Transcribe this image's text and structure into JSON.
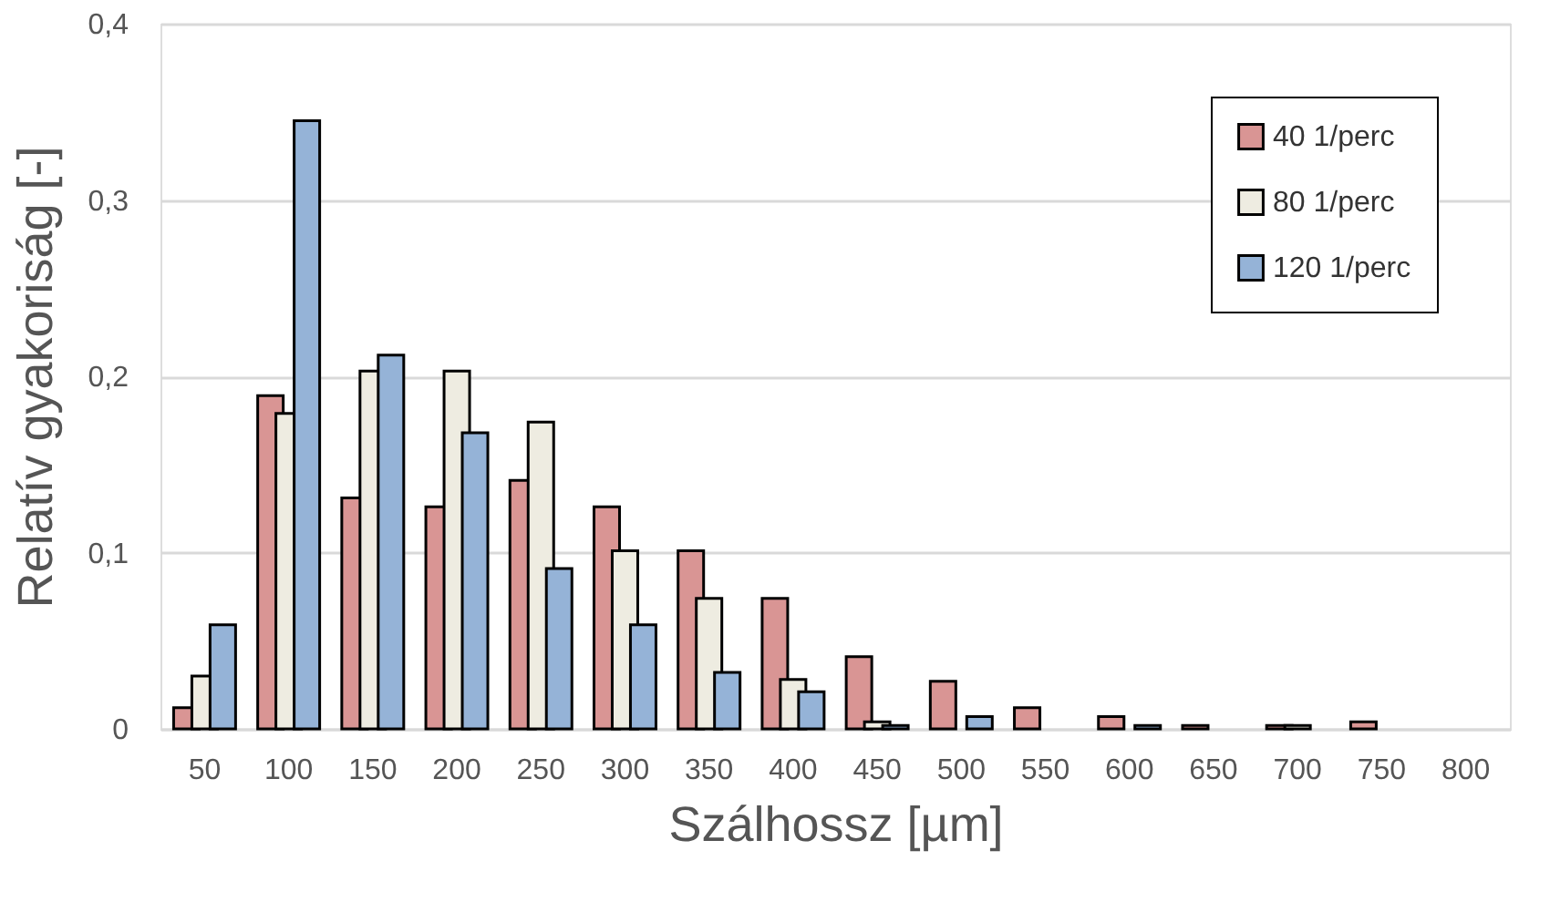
{
  "chart_data": {
    "type": "bar",
    "xlabel": "Szálhossz [µm]",
    "ylabel": "Relatív gyakoriság [-]",
    "categories": [
      "50",
      "100",
      "150",
      "200",
      "250",
      "300",
      "350",
      "400",
      "450",
      "500",
      "550",
      "600",
      "650",
      "700",
      "750",
      "800"
    ],
    "series": [
      {
        "name": "40 1/perc",
        "color": "#d99594",
        "values": [
          0.012,
          0.189,
          0.131,
          0.126,
          0.141,
          0.126,
          0.101,
          0.074,
          0.041,
          0.027,
          0.012,
          0.007,
          0.002,
          0.002,
          0.004,
          null
        ]
      },
      {
        "name": "80 1/perc",
        "color": "#eeece1",
        "values": [
          0.03,
          0.179,
          0.203,
          0.203,
          0.174,
          0.101,
          0.074,
          0.028,
          0.004,
          null,
          null,
          null,
          null,
          0.002,
          null,
          null
        ]
      },
      {
        "name": "120 1/perc",
        "color": "#95b3d7",
        "values": [
          0.059,
          0.345,
          0.212,
          0.168,
          0.091,
          0.059,
          0.032,
          0.021,
          0.002,
          0.007,
          null,
          0.002,
          null,
          null,
          null,
          null
        ]
      }
    ],
    "ylim": [
      0,
      0.4
    ],
    "yticks": [
      0,
      {
        "value": 0.1,
        "label": "0,1"
      },
      {
        "value": 0.2,
        "label": "0,2"
      },
      {
        "value": 0.3,
        "label": "0,3"
      },
      {
        "value": 0.4,
        "label": "0,4"
      }
    ],
    "grid": "y",
    "legend": "top right"
  }
}
